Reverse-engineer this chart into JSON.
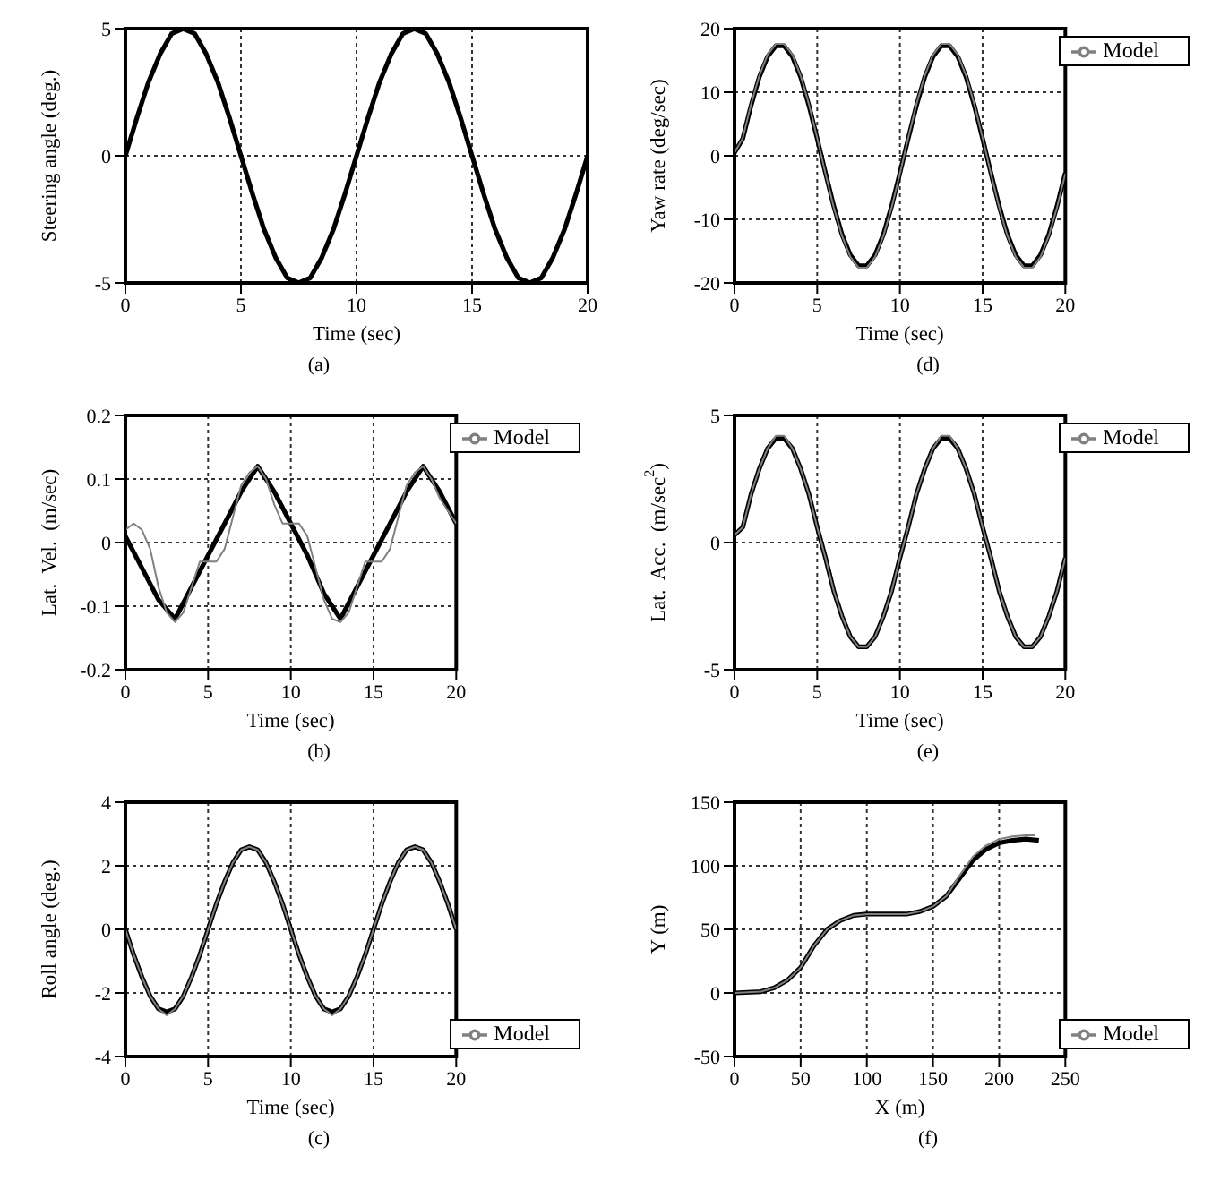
{
  "chart_data": [
    {
      "type": "line",
      "xlabel": "Time (sec)",
      "ylabel": "Steering angle (deg.)",
      "annotations": [
        "(a)"
      ],
      "xlim": [
        0,
        20
      ],
      "xticks": [
        0,
        5,
        10,
        15,
        20
      ],
      "ylim": [
        -5,
        5
      ],
      "yticks": [
        -5,
        0,
        5
      ],
      "grid": true,
      "line_style": "solid",
      "x": [
        0,
        0.5,
        1,
        1.5,
        2,
        2.5,
        3,
        3.5,
        4,
        4.5,
        5,
        5.5,
        6,
        6.5,
        7,
        7.5,
        8,
        8.5,
        9,
        9.5,
        10,
        10.5,
        11,
        11.5,
        12,
        12.5,
        13,
        13.5,
        14,
        14.5,
        15,
        15.5,
        16,
        16.5,
        17,
        17.5,
        18,
        18.5,
        19,
        19.5,
        20
      ],
      "series": [
        {
          "color": "#000000",
          "values": [
            0,
            1.5,
            2.9,
            4,
            4.8,
            5,
            4.8,
            4,
            2.9,
            1.5,
            0,
            -1.5,
            -2.9,
            -4,
            -4.8,
            -5,
            -4.8,
            -4,
            -2.9,
            -1.5,
            0,
            1.5,
            2.9,
            4,
            4.8,
            5,
            4.8,
            4,
            2.9,
            1.5,
            0,
            -1.5,
            -2.9,
            -4,
            -4.8,
            -5,
            -4.8,
            -4,
            -2.9,
            -1.5,
            0
          ]
        }
      ]
    },
    {
      "type": "line",
      "xlabel": "Time (sec)",
      "ylabel": "Yaw rate (deg/sec)",
      "annotations": [
        "(d)"
      ],
      "xlim": [
        0,
        20
      ],
      "xticks": [
        0,
        5,
        10,
        15,
        20
      ],
      "ylim": [
        -20,
        20
      ],
      "yticks": [
        -20,
        -10,
        0,
        10,
        20
      ],
      "grid": true,
      "legend": "top right",
      "line_style": "solid",
      "x": [
        0,
        0.5,
        1,
        1.5,
        2,
        2.5,
        3,
        3.5,
        4,
        4.5,
        5,
        5.5,
        6,
        6.5,
        7,
        7.5,
        8,
        8.5,
        9,
        9.5,
        10,
        10.5,
        11,
        11.5,
        12,
        12.5,
        13,
        13.5,
        14,
        14.5,
        15,
        15.5,
        16,
        16.5,
        17,
        17.5,
        18,
        18.5,
        19,
        19.5,
        20
      ],
      "series": [
        {
          "color": "#000000",
          "values": [
            0.5,
            2.7,
            7.9,
            12.4,
            15.6,
            17.3,
            17.3,
            15.6,
            12.4,
            7.9,
            2.7,
            -2.7,
            -7.9,
            -12.4,
            -15.6,
            -17.3,
            -17.3,
            -15.6,
            -12.4,
            -7.9,
            -2.7,
            2.7,
            7.9,
            12.4,
            15.6,
            17.3,
            17.3,
            15.6,
            12.4,
            7.9,
            2.7,
            -2.7,
            -7.9,
            -12.4,
            -15.6,
            -17.3,
            -17.3,
            -15.6,
            -12.4,
            -7.9,
            -2.7
          ]
        },
        {
          "name": "Model",
          "color": "#808080",
          "values": [
            0.5,
            2.8,
            8.1,
            12.6,
            15.9,
            17.6,
            17.6,
            15.9,
            12.6,
            8.1,
            2.8,
            -2.8,
            -8.1,
            -12.6,
            -15.9,
            -17.6,
            -17.6,
            -15.9,
            -12.6,
            -8.1,
            -2.8,
            2.8,
            8.1,
            12.6,
            15.9,
            17.6,
            17.6,
            15.9,
            12.6,
            8.1,
            2.8,
            -2.8,
            -8.1,
            -12.6,
            -15.9,
            -17.6,
            -17.6,
            -15.9,
            -12.6,
            -8.1,
            -2.8
          ]
        }
      ]
    },
    {
      "type": "line",
      "xlabel": "Time (sec)",
      "ylabel": "Lat.  Vel.  (m/sec)",
      "annotations": [
        "(b)"
      ],
      "xlim": [
        0,
        20
      ],
      "xticks": [
        0,
        5,
        10,
        15,
        20
      ],
      "ylim": [
        -0.2,
        0.2
      ],
      "yticks": [
        -0.2,
        -0.1,
        0,
        0.1,
        0.2
      ],
      "grid": true,
      "legend": "top right",
      "line_style": "solid",
      "series": [
        {
          "color": "#000000",
          "x": [
            0,
            1,
            2,
            3,
            4,
            5,
            6,
            7,
            8,
            9,
            10,
            11,
            12,
            13,
            14,
            15,
            16,
            17,
            18,
            19,
            20
          ],
          "values": [
            0.01,
            -0.04,
            -0.09,
            -0.12,
            -0.07,
            -0.02,
            0.03,
            0.08,
            0.12,
            0.08,
            0.03,
            -0.02,
            -0.08,
            -0.12,
            -0.07,
            -0.02,
            0.03,
            0.08,
            0.12,
            0.08,
            0.03
          ]
        },
        {
          "name": "Model",
          "color": "#808080",
          "x": [
            0,
            0.5,
            1,
            1.5,
            2,
            2.5,
            3,
            3.5,
            4,
            4.5,
            5,
            5.5,
            6,
            6.5,
            7,
            7.5,
            8,
            8.5,
            9,
            9.5,
            10,
            10.5,
            11,
            11.5,
            12,
            12.5,
            13,
            13.5,
            14,
            14.5,
            15,
            15.5,
            16,
            16.5,
            17,
            17.5,
            18,
            18.5,
            19,
            20
          ],
          "values": [
            0.02,
            0.03,
            0.02,
            -0.01,
            -0.07,
            -0.11,
            -0.125,
            -0.11,
            -0.07,
            -0.03,
            -0.03,
            -0.03,
            -0.01,
            0.04,
            0.09,
            0.11,
            0.12,
            0.1,
            0.06,
            0.03,
            0.03,
            0.03,
            0.01,
            -0.04,
            -0.09,
            -0.12,
            -0.125,
            -0.11,
            -0.07,
            -0.03,
            -0.03,
            -0.03,
            -0.01,
            0.04,
            0.09,
            0.11,
            0.12,
            0.1,
            0.07,
            0.03
          ]
        }
      ]
    },
    {
      "type": "line",
      "xlabel": "Time (sec)",
      "ylabel": "Lat.  Acc.  (m/sec$^{2}$)",
      "annotations": [
        "(e)"
      ],
      "xlim": [
        0,
        20
      ],
      "xticks": [
        0,
        5,
        10,
        15,
        20
      ],
      "ylim": [
        -5,
        5
      ],
      "yticks": [
        -5,
        0,
        5
      ],
      "grid": true,
      "legend": "top right",
      "line_style": "solid",
      "x": [
        0,
        0.5,
        1,
        1.5,
        2,
        2.5,
        3,
        3.5,
        4,
        4.5,
        5,
        5.5,
        6,
        6.5,
        7,
        7.5,
        8,
        8.5,
        9,
        9.5,
        10,
        10.5,
        11,
        11.5,
        12,
        12.5,
        13,
        13.5,
        14,
        14.5,
        15,
        15.5,
        16,
        16.5,
        17,
        17.5,
        18,
        18.5,
        19,
        19.5,
        20
      ],
      "series": [
        {
          "color": "#000000",
          "values": [
            0.3,
            0.6,
            1.9,
            2.9,
            3.7,
            4.1,
            4.1,
            3.7,
            2.9,
            1.9,
            0.6,
            -0.6,
            -1.9,
            -2.9,
            -3.7,
            -4.1,
            -4.1,
            -3.7,
            -2.9,
            -1.9,
            -0.6,
            0.6,
            1.9,
            2.9,
            3.7,
            4.1,
            4.1,
            3.7,
            2.9,
            1.9,
            0.6,
            -0.6,
            -1.9,
            -2.9,
            -3.7,
            -4.1,
            -4.1,
            -3.7,
            -2.9,
            -1.9,
            -0.6
          ]
        },
        {
          "name": "Model",
          "color": "#808080",
          "values": [
            0.3,
            0.6,
            1.9,
            2.9,
            3.7,
            4.2,
            4.2,
            3.7,
            2.9,
            1.9,
            0.6,
            -0.6,
            -1.9,
            -2.9,
            -3.7,
            -4.1,
            -4.1,
            -3.7,
            -2.9,
            -1.9,
            -0.6,
            0.6,
            1.9,
            2.9,
            3.7,
            4.2,
            4.2,
            3.7,
            2.9,
            1.9,
            0.6,
            -0.6,
            -1.9,
            -2.9,
            -3.7,
            -4.1,
            -4.1,
            -3.7,
            -2.9,
            -1.9,
            -0.6
          ]
        }
      ]
    },
    {
      "type": "line",
      "xlabel": "Time (sec)",
      "ylabel": "Roll angle (deg.)",
      "annotations": [
        "(c)"
      ],
      "xlim": [
        0,
        20
      ],
      "xticks": [
        0,
        5,
        10,
        15,
        20
      ],
      "ylim": [
        -4,
        4
      ],
      "yticks": [
        -4,
        -2,
        0,
        2,
        4
      ],
      "grid": true,
      "legend": "bottom right",
      "line_style": "solid",
      "x": [
        0,
        0.5,
        1,
        1.5,
        2,
        2.5,
        3,
        3.5,
        4,
        4.5,
        5,
        5.5,
        6,
        6.5,
        7,
        7.5,
        8,
        8.5,
        9,
        9.5,
        10,
        10.5,
        11,
        11.5,
        12,
        12.5,
        13,
        13.5,
        14,
        14.5,
        15,
        15.5,
        16,
        16.5,
        17,
        17.5,
        18,
        18.5,
        19,
        19.5,
        20
      ],
      "series": [
        {
          "color": "#000000",
          "values": [
            0,
            -0.8,
            -1.5,
            -2.1,
            -2.5,
            -2.6,
            -2.5,
            -2.1,
            -1.5,
            -0.8,
            0,
            0.8,
            1.5,
            2.1,
            2.5,
            2.6,
            2.5,
            2.1,
            1.5,
            0.8,
            0,
            -0.8,
            -1.5,
            -2.1,
            -2.5,
            -2.6,
            -2.5,
            -2.1,
            -1.5,
            -0.8,
            0,
            0.8,
            1.5,
            2.1,
            2.5,
            2.6,
            2.5,
            2.1,
            1.5,
            0.8,
            0
          ]
        },
        {
          "name": "Model",
          "color": "#808080",
          "values": [
            0,
            -0.8,
            -1.5,
            -2.1,
            -2.5,
            -2.7,
            -2.5,
            -2.1,
            -1.5,
            -0.8,
            0,
            0.8,
            1.5,
            2.1,
            2.5,
            2.6,
            2.5,
            2.1,
            1.5,
            0.8,
            0,
            -0.8,
            -1.5,
            -2.1,
            -2.5,
            -2.7,
            -2.5,
            -2.1,
            -1.5,
            -0.8,
            0,
            0.8,
            1.5,
            2.1,
            2.5,
            2.6,
            2.5,
            2.1,
            1.5,
            0.8,
            0
          ]
        }
      ]
    },
    {
      "type": "line",
      "xlabel": "X (m)",
      "ylabel": "Y (m)",
      "annotations": [
        "(f)"
      ],
      "xlim": [
        0,
        250
      ],
      "xticks": [
        0,
        50,
        100,
        150,
        200,
        250
      ],
      "ylim": [
        -50,
        150
      ],
      "yticks": [
        -50,
        0,
        50,
        100,
        150
      ],
      "grid": true,
      "legend": "bottom right",
      "line_style": "solid",
      "series": [
        {
          "color": "#000000",
          "x": [
            0,
            20,
            30,
            40,
            50,
            60,
            70,
            80,
            90,
            100,
            120,
            130,
            140,
            150,
            160,
            170,
            180,
            190,
            200,
            210,
            220,
            230
          ],
          "values": [
            0,
            1,
            4,
            10,
            20,
            37,
            50,
            57,
            61,
            62,
            62,
            62,
            64,
            68,
            76,
            90,
            104,
            113,
            118,
            120,
            121,
            120
          ]
        },
        {
          "name": "Model",
          "color": "#808080",
          "x": [
            0,
            20,
            30,
            40,
            50,
            60,
            70,
            80,
            90,
            100,
            120,
            130,
            140,
            150,
            160,
            170,
            180,
            190,
            200,
            210,
            220,
            227
          ],
          "values": [
            0,
            1,
            4,
            10,
            20,
            37,
            50,
            57,
            61,
            62,
            62,
            62,
            64,
            68,
            76,
            92,
            107,
            116,
            121,
            123,
            124,
            124
          ]
        }
      ]
    }
  ]
}
